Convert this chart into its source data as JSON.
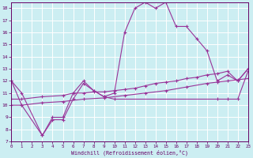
{
  "xlabel": "Windchill (Refroidissement éolien,°C)",
  "bg_color": "#cceef2",
  "line_color": "#993399",
  "label_color": "#660066",
  "grid_color": "#ffffff",
  "xlim": [
    0,
    23
  ],
  "ylim": [
    7,
    18.5
  ],
  "xticks": [
    0,
    1,
    2,
    3,
    4,
    5,
    6,
    7,
    8,
    9,
    10,
    11,
    12,
    13,
    14,
    15,
    16,
    17,
    18,
    19,
    20,
    21,
    22,
    23
  ],
  "yticks": [
    7,
    8,
    9,
    10,
    11,
    12,
    13,
    14,
    15,
    16,
    17,
    18
  ],
  "series": [
    {
      "x": [
        0,
        1,
        3,
        4,
        5,
        6,
        7,
        8,
        9,
        10,
        11,
        12,
        13,
        14,
        15,
        16,
        17,
        18,
        19,
        20,
        21,
        22,
        23
      ],
      "y": [
        12,
        11,
        7.5,
        9,
        9,
        11,
        12,
        11.2,
        10.7,
        11,
        16,
        18,
        18.5,
        18,
        18.5,
        16.5,
        16.5,
        15.5,
        14.5,
        12,
        12.5,
        12,
        13
      ]
    },
    {
      "x": [
        0,
        1,
        3,
        4,
        5,
        6,
        7,
        8,
        9,
        10,
        20,
        21,
        22,
        23
      ],
      "y": [
        12,
        10,
        7.5,
        8.8,
        8.8,
        10.5,
        11.8,
        11.2,
        10.7,
        10.5,
        10.5,
        10.5,
        10.5,
        12.8
      ]
    },
    {
      "x": [
        0,
        1,
        3,
        5,
        6,
        7,
        8,
        9,
        10,
        11,
        12,
        13,
        14,
        15,
        16,
        17,
        18,
        19,
        20,
        21,
        22,
        23
      ],
      "y": [
        10.5,
        10.5,
        10.7,
        10.8,
        11.0,
        11.0,
        11.1,
        11.1,
        11.2,
        11.3,
        11.4,
        11.6,
        11.8,
        11.9,
        12.0,
        12.2,
        12.3,
        12.5,
        12.6,
        12.8,
        12.0,
        13.0
      ]
    },
    {
      "x": [
        0,
        1,
        3,
        5,
        7,
        9,
        11,
        13,
        15,
        17,
        19,
        20,
        21,
        22,
        23
      ],
      "y": [
        10.0,
        10.0,
        10.2,
        10.3,
        10.5,
        10.6,
        10.8,
        11.0,
        11.2,
        11.5,
        11.8,
        11.9,
        12.0,
        12.1,
        12.2
      ]
    }
  ]
}
